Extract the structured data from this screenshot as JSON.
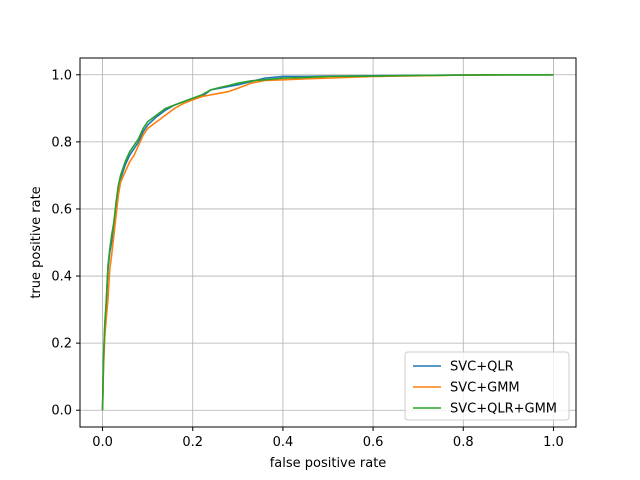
{
  "chart_data": {
    "type": "line",
    "title": "",
    "xlabel": "false positive rate",
    "ylabel": "true positive rate",
    "xlim": [
      -0.05,
      1.05
    ],
    "ylim": [
      -0.05,
      1.05
    ],
    "xticks": [
      0.0,
      0.2,
      0.4,
      0.6,
      0.8,
      1.0
    ],
    "yticks": [
      0.0,
      0.2,
      0.4,
      0.6,
      0.8,
      1.0
    ],
    "xtick_labels": [
      "0.0",
      "0.2",
      "0.4",
      "0.6",
      "0.8",
      "1.0"
    ],
    "ytick_labels": [
      "0.0",
      "0.2",
      "0.4",
      "0.6",
      "0.8",
      "1.0"
    ],
    "grid": true,
    "legend_position": "lower right",
    "series": [
      {
        "name": "SVC+QLR",
        "color": "#1f77b4",
        "x": [
          0.0,
          0.002,
          0.005,
          0.008,
          0.012,
          0.016,
          0.02,
          0.025,
          0.03,
          0.035,
          0.04,
          0.05,
          0.06,
          0.07,
          0.08,
          0.09,
          0.1,
          0.12,
          0.14,
          0.16,
          0.18,
          0.2,
          0.22,
          0.24,
          0.26,
          0.28,
          0.3,
          0.33,
          0.36,
          0.4,
          0.45,
          0.5,
          0.6,
          0.7,
          0.8,
          0.9,
          1.0
        ],
        "y": [
          0.0,
          0.14,
          0.25,
          0.31,
          0.42,
          0.47,
          0.5,
          0.55,
          0.61,
          0.66,
          0.69,
          0.73,
          0.76,
          0.78,
          0.8,
          0.83,
          0.85,
          0.875,
          0.895,
          0.91,
          0.92,
          0.93,
          0.935,
          0.955,
          0.96,
          0.965,
          0.97,
          0.98,
          0.99,
          0.995,
          0.995,
          0.996,
          0.997,
          0.998,
          0.999,
          1.0,
          1.0
        ]
      },
      {
        "name": "SVC+GMM",
        "color": "#ff7f0e",
        "x": [
          0.0,
          0.002,
          0.005,
          0.008,
          0.012,
          0.016,
          0.02,
          0.025,
          0.03,
          0.035,
          0.04,
          0.05,
          0.06,
          0.07,
          0.08,
          0.09,
          0.1,
          0.12,
          0.14,
          0.16,
          0.18,
          0.2,
          0.22,
          0.24,
          0.26,
          0.28,
          0.3,
          0.33,
          0.36,
          0.4,
          0.45,
          0.5,
          0.6,
          0.7,
          0.8,
          0.9,
          1.0
        ],
        "y": [
          0.0,
          0.12,
          0.22,
          0.27,
          0.33,
          0.42,
          0.46,
          0.52,
          0.58,
          0.64,
          0.68,
          0.71,
          0.74,
          0.76,
          0.79,
          0.82,
          0.84,
          0.86,
          0.88,
          0.9,
          0.915,
          0.925,
          0.935,
          0.94,
          0.945,
          0.95,
          0.96,
          0.975,
          0.983,
          0.985,
          0.988,
          0.99,
          0.995,
          0.997,
          0.999,
          1.0,
          1.0
        ]
      },
      {
        "name": "SVC+QLR+GMM",
        "color": "#2ca02c",
        "x": [
          0.0,
          0.002,
          0.005,
          0.008,
          0.012,
          0.016,
          0.02,
          0.025,
          0.03,
          0.035,
          0.04,
          0.05,
          0.06,
          0.07,
          0.08,
          0.09,
          0.1,
          0.12,
          0.14,
          0.16,
          0.18,
          0.2,
          0.22,
          0.24,
          0.26,
          0.28,
          0.3,
          0.33,
          0.36,
          0.4,
          0.45,
          0.5,
          0.6,
          0.7,
          0.8,
          0.9,
          1.0
        ],
        "y": [
          0.0,
          0.15,
          0.26,
          0.32,
          0.43,
          0.48,
          0.52,
          0.56,
          0.62,
          0.67,
          0.7,
          0.74,
          0.77,
          0.79,
          0.81,
          0.84,
          0.86,
          0.88,
          0.9,
          0.91,
          0.92,
          0.93,
          0.94,
          0.955,
          0.962,
          0.968,
          0.975,
          0.982,
          0.985,
          0.99,
          0.992,
          0.995,
          0.996,
          0.998,
          0.999,
          1.0,
          1.0
        ]
      }
    ]
  }
}
